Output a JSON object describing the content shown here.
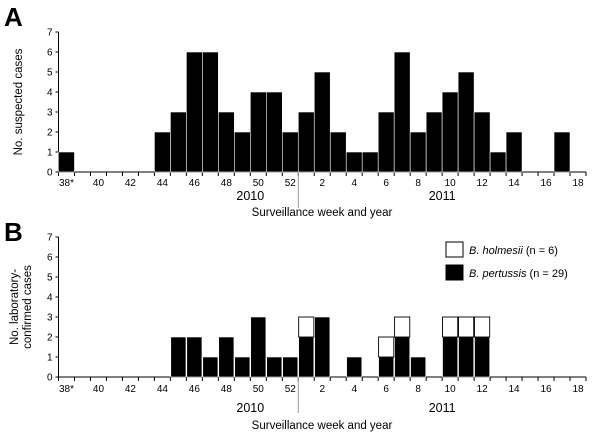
{
  "chart_data": [
    {
      "type": "bar",
      "panel": "A",
      "ylabel": "No. suspected cases",
      "xlabel": "Surveillance week and year",
      "ylim": [
        0,
        7
      ],
      "yticks": [
        "0",
        "1",
        "2",
        "3",
        "4",
        "5",
        "6",
        "7"
      ],
      "categories": [
        "38",
        "39",
        "40",
        "41",
        "42",
        "43",
        "44",
        "45",
        "46",
        "47",
        "48",
        "49",
        "50",
        "51",
        "52",
        "1",
        "2",
        "3",
        "4",
        "5",
        "6",
        "7",
        "8",
        "9",
        "10",
        "11",
        "12",
        "13",
        "14",
        "15",
        "16",
        "17",
        "18"
      ],
      "xticks": [
        "38*",
        "40",
        "42",
        "44",
        "46",
        "48",
        "50",
        "52",
        "2",
        "4",
        "6",
        "8",
        "10",
        "12",
        "14",
        "16",
        "18"
      ],
      "values": [
        1,
        0,
        0,
        0,
        0,
        0,
        2,
        3,
        6,
        6,
        3,
        2,
        4,
        4,
        2,
        3,
        5,
        2,
        1,
        1,
        3,
        6,
        2,
        3,
        4,
        5,
        3,
        1,
        2,
        0,
        0,
        2,
        0
      ],
      "years": [
        {
          "label": "2010",
          "week": "50"
        },
        {
          "label": "2011",
          "week": "10"
        }
      ]
    },
    {
      "type": "bar",
      "panel": "B",
      "ylabel": "No. laboratory-\nconfirmed cases",
      "xlabel": "Surveillance week and year",
      "ylim": [
        0,
        7
      ],
      "yticks": [
        "0",
        "1",
        "2",
        "3",
        "4",
        "5",
        "6",
        "7"
      ],
      "categories": [
        "38",
        "39",
        "40",
        "41",
        "42",
        "43",
        "44",
        "45",
        "46",
        "47",
        "48",
        "49",
        "50",
        "51",
        "52",
        "1",
        "2",
        "3",
        "4",
        "5",
        "6",
        "7",
        "8",
        "9",
        "10",
        "11",
        "12",
        "13",
        "14",
        "15",
        "16",
        "17",
        "18"
      ],
      "xticks": [
        "38*",
        "40",
        "42",
        "44",
        "46",
        "48",
        "50",
        "52",
        "2",
        "4",
        "6",
        "8",
        "10",
        "12",
        "14",
        "16",
        "18"
      ],
      "series": [
        {
          "name": "B. pertussis",
          "count": "(n = 29)",
          "color": "#000000",
          "values": [
            0,
            0,
            0,
            0,
            0,
            0,
            0,
            2,
            2,
            1,
            2,
            1,
            3,
            1,
            1,
            2,
            3,
            0,
            1,
            0,
            1,
            2,
            1,
            0,
            2,
            2,
            2,
            0,
            0,
            0,
            0,
            0,
            0
          ]
        },
        {
          "name": "B. holmesii",
          "count": "(n = 6)",
          "color": "#ffffff",
          "values": [
            0,
            0,
            0,
            0,
            0,
            0,
            0,
            0,
            0,
            0,
            0,
            0,
            0,
            0,
            0,
            1,
            0,
            0,
            0,
            0,
            1,
            1,
            0,
            0,
            1,
            1,
            1,
            0,
            0,
            0,
            0,
            0,
            0
          ]
        }
      ],
      "legend_position": "top-right",
      "years": [
        {
          "label": "2010",
          "week": "50"
        },
        {
          "label": "2011",
          "week": "10"
        }
      ]
    }
  ]
}
